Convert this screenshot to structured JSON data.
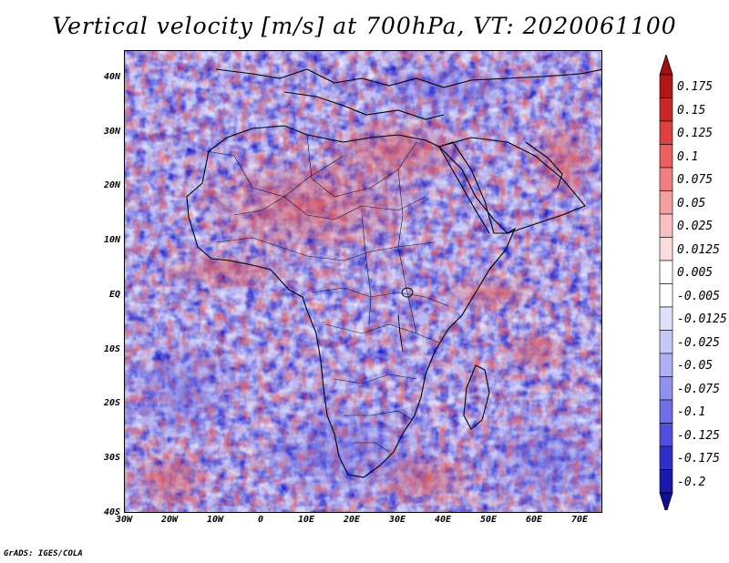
{
  "title": "Vertical velocity [m/s] at 700hPa, VT: 2020061100",
  "footer": "GrADS: IGES/COLA",
  "map": {
    "projection": "latlon",
    "lon_range": [
      -30,
      75
    ],
    "lat_range": [
      -40,
      45
    ],
    "lat_ticks": [
      {
        "value": 40,
        "label": "40N"
      },
      {
        "value": 30,
        "label": "30N"
      },
      {
        "value": 20,
        "label": "20N"
      },
      {
        "value": 10,
        "label": "10N"
      },
      {
        "value": 0,
        "label": "EQ"
      },
      {
        "value": -10,
        "label": "10S"
      },
      {
        "value": -20,
        "label": "20S"
      },
      {
        "value": -30,
        "label": "30S"
      },
      {
        "value": -40,
        "label": "40S"
      }
    ],
    "lon_ticks": [
      {
        "value": -30,
        "label": "30W"
      },
      {
        "value": -20,
        "label": "20W"
      },
      {
        "value": -10,
        "label": "10W"
      },
      {
        "value": 0,
        "label": "0"
      },
      {
        "value": 10,
        "label": "10E"
      },
      {
        "value": 20,
        "label": "20E"
      },
      {
        "value": 30,
        "label": "30E"
      },
      {
        "value": 40,
        "label": "40E"
      },
      {
        "value": 50,
        "label": "50E"
      },
      {
        "value": 60,
        "label": "60E"
      },
      {
        "value": 70,
        "label": "70E"
      }
    ],
    "field": "vertical velocity 700hPa",
    "colors": {
      "land_line": "#000000",
      "neutral": "#ffffff"
    }
  },
  "colorbar": {
    "labels": [
      "0.175",
      "0.15",
      "0.125",
      "0.1",
      "0.075",
      "0.05",
      "0.025",
      "0.0125",
      "0.005",
      "-0.005",
      "-0.0125",
      "-0.025",
      "-0.05",
      "-0.075",
      "-0.1",
      "-0.125",
      "-0.175",
      "-0.2"
    ],
    "colors": [
      "#b01818",
      "#c82828",
      "#dc4040",
      "#e86060",
      "#f08080",
      "#f4a0a0",
      "#f8c0c0",
      "#fcdcdc",
      "#ffffff",
      "#ffffff",
      "#e0e0fc",
      "#c8c8f8",
      "#b0b0f4",
      "#9090ee",
      "#7070e6",
      "#5050dc",
      "#3030c8",
      "#1a1aa8"
    ],
    "top_arrow_color": "#a01010",
    "bottom_arrow_color": "#101090"
  }
}
